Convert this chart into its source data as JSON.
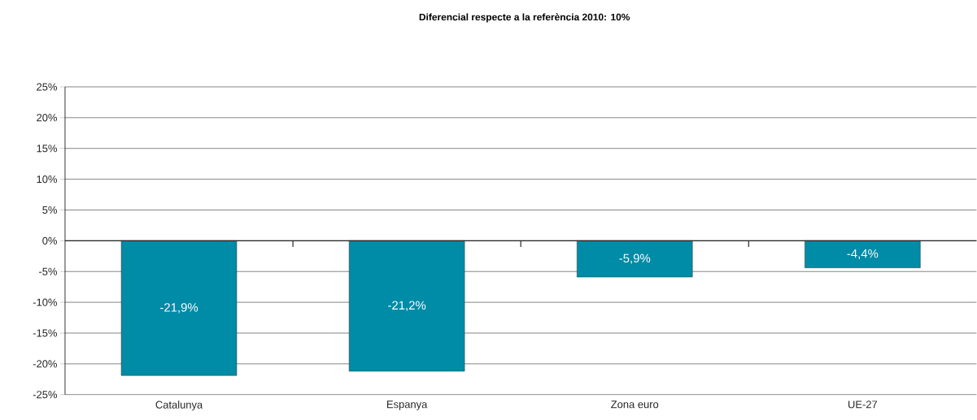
{
  "chart_data": {
    "type": "bar",
    "title": "Diferencial respecte a la referència 2010: 10%",
    "categories": [
      "Catalunya",
      "Espanya",
      "Zona euro",
      "UE-27"
    ],
    "values": [
      -21.9,
      -21.2,
      -5.9,
      -4.4
    ],
    "value_labels": [
      "-21,9%",
      "-21,2%",
      "-5,9%",
      "-4,4%"
    ],
    "color": "#008ba6",
    "ylim": [
      -25,
      25
    ],
    "yticks": [
      {
        "value": -25,
        "label": "-25%"
      },
      {
        "value": -20,
        "label": "-20%"
      },
      {
        "value": -15,
        "label": "-15%"
      },
      {
        "value": -10,
        "label": "-10%"
      },
      {
        "value": -5,
        "label": "-5%"
      },
      {
        "value": 0,
        "label": "0%"
      },
      {
        "value": 5,
        "label": "5%"
      },
      {
        "value": 10,
        "label": "10%"
      },
      {
        "value": 15,
        "label": "15%"
      },
      {
        "value": 20,
        "label": "20%"
      },
      {
        "value": 25,
        "label": "25%"
      }
    ],
    "grid": "y"
  }
}
